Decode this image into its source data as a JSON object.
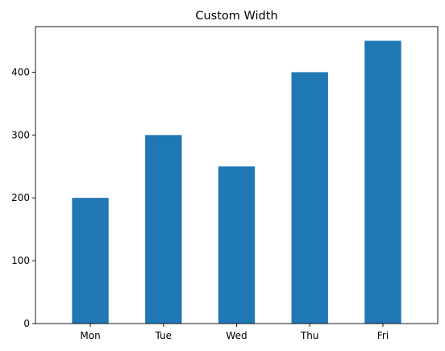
{
  "chart_data": {
    "type": "bar",
    "title": "Custom Width",
    "categories": [
      "Mon",
      "Tue",
      "Wed",
      "Thu",
      "Fri"
    ],
    "values": [
      200,
      300,
      250,
      400,
      450
    ],
    "bar_width_fraction": 0.5,
    "xlabel": "",
    "ylabel": "",
    "ylim": [
      0,
      472.5
    ],
    "yticks": [
      0,
      100,
      200,
      300,
      400
    ],
    "grid": false,
    "bar_color": "#1f77b4"
  }
}
